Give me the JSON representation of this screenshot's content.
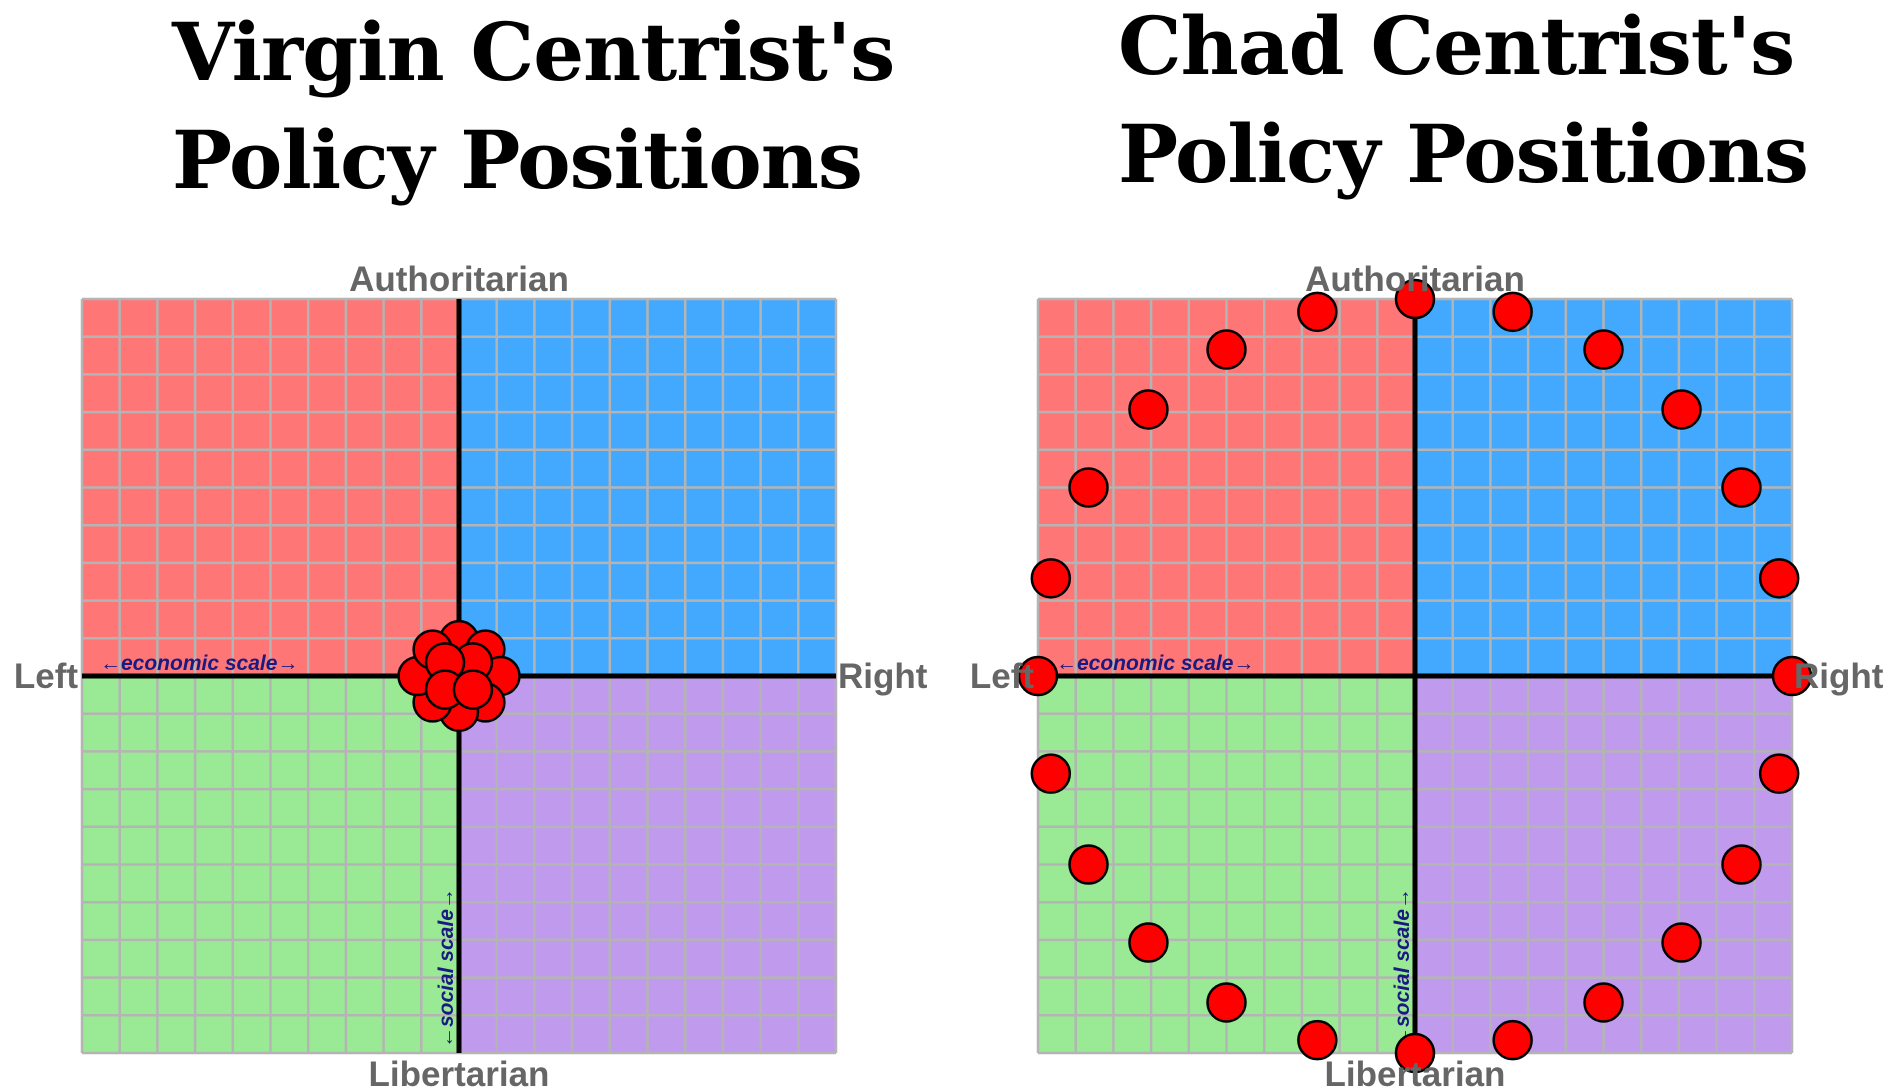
{
  "chart_data": [
    {
      "type": "scatter",
      "title_lines": [
        "Virgin Centrist's",
        "Policy Positions"
      ],
      "labels": {
        "top": "Authoritarian",
        "bottom": "Libertarian",
        "left": "Left",
        "right": "Right"
      },
      "xlabel": "←economic scale→",
      "ylabel": "←social scale→",
      "xlim": [
        -10,
        10
      ],
      "ylim": [
        -10,
        10
      ],
      "grid": true,
      "quadrant_colors": {
        "top_left": "#ff7676",
        "top_right": "#42a9ff",
        "bottom_left": "#9aea95",
        "bottom_right": "#c09aec"
      },
      "point_color": "#ff0000",
      "points": [
        {
          "x": 0,
          "y": 0.95
        },
        {
          "x": 0.7,
          "y": 0.7
        },
        {
          "x": 1.1,
          "y": 0
        },
        {
          "x": 0.7,
          "y": -0.7
        },
        {
          "x": 0,
          "y": -0.95
        },
        {
          "x": -0.7,
          "y": -0.7
        },
        {
          "x": -1.1,
          "y": 0
        },
        {
          "x": -0.7,
          "y": 0.7
        },
        {
          "x": 0.37,
          "y": 0.36
        },
        {
          "x": -0.37,
          "y": 0.36
        },
        {
          "x": -0.37,
          "y": -0.36
        },
        {
          "x": 0.37,
          "y": -0.36
        }
      ]
    },
    {
      "type": "scatter",
      "title_lines": [
        "Chad Centrist's",
        "Policy Positions"
      ],
      "labels": {
        "top": "Authoritarian",
        "bottom": "Libertarian",
        "left": "Left",
        "right": "Right"
      },
      "xlabel": "←economic scale→",
      "ylabel": "←social scale→",
      "xlim": [
        -10,
        10
      ],
      "ylim": [
        -10,
        10
      ],
      "grid": true,
      "quadrant_colors": {
        "top_left": "#ff7676",
        "top_right": "#42a9ff",
        "bottom_left": "#9aea95",
        "bottom_right": "#c09aec"
      },
      "point_color": "#ff0000",
      "points": [
        {
          "x": 0,
          "y": 10
        },
        {
          "x": 2.59,
          "y": 9.66
        },
        {
          "x": 5,
          "y": 8.66
        },
        {
          "x": 7.07,
          "y": 7.07
        },
        {
          "x": 8.66,
          "y": 5
        },
        {
          "x": 9.66,
          "y": 2.59
        },
        {
          "x": 10,
          "y": 0
        },
        {
          "x": 9.66,
          "y": -2.59
        },
        {
          "x": 8.66,
          "y": -5
        },
        {
          "x": 7.07,
          "y": -7.07
        },
        {
          "x": 5,
          "y": -8.66
        },
        {
          "x": 2.59,
          "y": -9.66
        },
        {
          "x": 0,
          "y": -10
        },
        {
          "x": -2.59,
          "y": -9.66
        },
        {
          "x": -5,
          "y": -8.66
        },
        {
          "x": -7.07,
          "y": -7.07
        },
        {
          "x": -8.66,
          "y": -5
        },
        {
          "x": -9.66,
          "y": -2.59
        },
        {
          "x": -10,
          "y": 0
        },
        {
          "x": -9.66,
          "y": 2.59
        },
        {
          "x": -8.66,
          "y": 5
        },
        {
          "x": -7.07,
          "y": 7.07
        },
        {
          "x": -5,
          "y": 8.66
        },
        {
          "x": -2.59,
          "y": 9.66
        }
      ]
    }
  ]
}
